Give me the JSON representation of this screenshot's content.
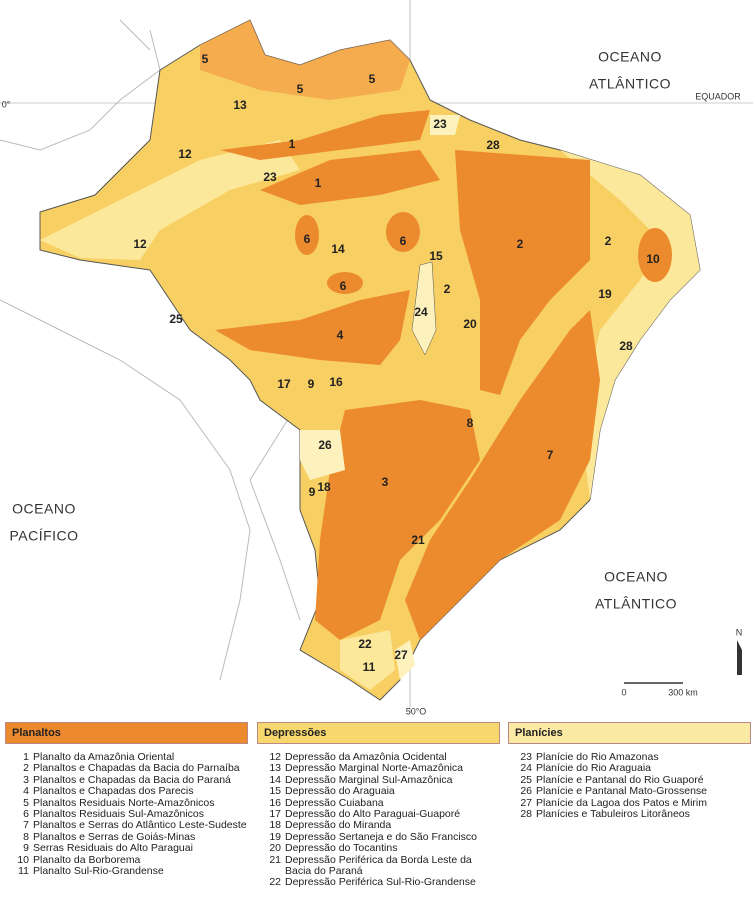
{
  "map_labels": [
    "5",
    "5",
    "5",
    "13",
    "23",
    "28",
    "12",
    "1",
    "23",
    "1",
    "12",
    "6",
    "14",
    "6",
    "2",
    "2",
    "10",
    "15",
    "6",
    "2",
    "19",
    "25",
    "24",
    "20",
    "4",
    "28",
    "17",
    "9",
    "16",
    "8",
    "26",
    "7",
    "3",
    "9",
    "18",
    "21",
    "22",
    "11",
    "27"
  ],
  "oceans": [
    {
      "line1": "OCEANO",
      "line2": "ATLÂNTICO"
    },
    {
      "line1": "OCEANO",
      "line2": "PACÍFICO"
    },
    {
      "line1": "OCEANO",
      "line2": "ATLÂNTICO"
    }
  ],
  "equator": "EQUADOR",
  "latitude": "0°",
  "meridian": "50°O",
  "north": "N",
  "scale": {
    "start": "0",
    "end": "300 km"
  },
  "legend": [
    {
      "title": "Planaltos",
      "items": [
        {
          "number": "1",
          "label": "Planalto da Amazônia Oriental"
        },
        {
          "number": "2",
          "label": "Planaltos e Chapadas da Bacia do Parnaíba"
        },
        {
          "number": "3",
          "label": "Planaltos e Chapadas da Bacia do Paraná"
        },
        {
          "number": "4",
          "label": "Planaltos e Chapadas dos Parecis"
        },
        {
          "number": "5",
          "label": "Planaltos Residuais Norte-Amazônicos"
        },
        {
          "number": "6",
          "label": "Planaltos Residuais Sul-Amazônicos"
        },
        {
          "number": "7",
          "label": "Planaltos e Serras do Atlântico Leste-Sudeste"
        },
        {
          "number": "8",
          "label": "Planaltos e Serras de Goiás-Minas"
        },
        {
          "number": "9",
          "label": "Serras Residuais do Alto Paraguai"
        },
        {
          "number": "10",
          "label": "Planalto da Borborema"
        },
        {
          "number": "11",
          "label": "Planalto Sul-Rio-Grandense"
        }
      ]
    },
    {
      "title": "Depressões",
      "items": [
        {
          "number": "12",
          "label": "Depressão da Amazônia Ocidental"
        },
        {
          "number": "13",
          "label": "Depressão Marginal Norte-Amazônica"
        },
        {
          "number": "14",
          "label": "Depressão Marginal Sul-Amazônica"
        },
        {
          "number": "15",
          "label": "Depressão do Araguaia"
        },
        {
          "number": "16",
          "label": "Depressão Cuiabana"
        },
        {
          "number": "17",
          "label": "Depressão do Alto Paraguai-Guaporé"
        },
        {
          "number": "18",
          "label": "Depressão do Miranda"
        },
        {
          "number": "19",
          "label": "Depressão Sertaneja e do São Francisco"
        },
        {
          "number": "20",
          "label": "Depressão do Tocantins"
        },
        {
          "number": "21",
          "label": "Depressão Periférica da Borda Leste da Bacia do Paraná"
        },
        {
          "number": "22",
          "label": "Depressão Periférica Sul-Rio-Grandense"
        }
      ]
    },
    {
      "title": "Planícies",
      "items": [
        {
          "number": "23",
          "label": "Planície do Rio Amazonas"
        },
        {
          "number": "24",
          "label": "Planície do Rio Araguaia"
        },
        {
          "number": "25",
          "label": "Planície e Pantanal do Rio Guaporé"
        },
        {
          "number": "26",
          "label": "Planície e Pantanal Mato-Grossense"
        },
        {
          "number": "27",
          "label": "Planície da Lagoa dos Patos e Mirim"
        },
        {
          "number": "28",
          "label": "Planícies e Tabuleiros Litorâneos"
        }
      ]
    }
  ]
}
